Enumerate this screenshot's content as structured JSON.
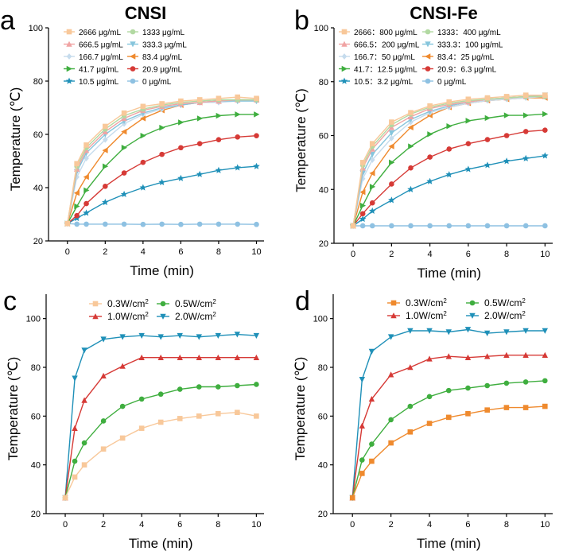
{
  "chart_data": [
    {
      "id": "a",
      "panel_label": "a",
      "type": "line",
      "title": "CNSI",
      "xlabel": "Time (min)",
      "ylabel": "Temperature (℃)",
      "xlim": [
        -1,
        10.4
      ],
      "ylim": [
        20,
        100
      ],
      "xticks": [
        0,
        2,
        4,
        6,
        8,
        10
      ],
      "yticks": [
        20,
        40,
        60,
        80,
        100
      ],
      "x": [
        0,
        0.5,
        1,
        2,
        3,
        4,
        5,
        6,
        7,
        8,
        9,
        10
      ],
      "legend": {
        "placement": "top",
        "columns": 2,
        "font": "small"
      },
      "series": [
        {
          "name": "2666 μg/mL",
          "color": "#f8c89a",
          "marker": "square",
          "values": [
            26.5,
            49,
            56,
            63,
            68,
            70.5,
            71.5,
            72.5,
            73,
            73.5,
            74,
            73.5
          ]
        },
        {
          "name": "1333 μg/mL",
          "color": "#b2d9a2",
          "marker": "circle",
          "values": [
            26.5,
            48,
            55,
            62,
            67,
            69.5,
            71,
            72,
            72.5,
            73,
            73,
            73
          ]
        },
        {
          "name": "666.5 μg/mL",
          "color": "#f0a4a4",
          "marker": "triangle-up",
          "values": [
            26.5,
            47,
            54,
            61,
            66,
            69,
            70.5,
            71.5,
            72,
            72.5,
            73,
            73
          ]
        },
        {
          "name": "333.3 μg/mL",
          "color": "#86c5dc",
          "marker": "triangle-down",
          "values": [
            26.5,
            46,
            53,
            60,
            65,
            68,
            70,
            71,
            72,
            72.5,
            72.5,
            72.5
          ]
        },
        {
          "name": "166.7 μg/mL",
          "color": "#c6dced",
          "marker": "diamond",
          "values": [
            26.5,
            44,
            51,
            58,
            64,
            67.5,
            69.5,
            71,
            72,
            72,
            72.5,
            72.5
          ]
        },
        {
          "name": "83.4 μg/mL",
          "color": "#ef8a2e",
          "marker": "triangle-left",
          "values": [
            26.5,
            38,
            44,
            54,
            61,
            66,
            69,
            71,
            72,
            72.5,
            73,
            73
          ]
        },
        {
          "name": "41.7 μg/mL",
          "color": "#3fae3f",
          "marker": "triangle-right",
          "values": [
            26.5,
            33,
            39,
            48,
            55,
            59.5,
            62.5,
            64.5,
            66,
            67,
            67.5,
            67.5
          ]
        },
        {
          "name": "20.9 μg/mL",
          "color": "#d63a36",
          "marker": "circle",
          "values": [
            26.5,
            29.5,
            34,
            40.5,
            45.5,
            49.5,
            52.5,
            55,
            56.5,
            58,
            59,
            59.5
          ]
        },
        {
          "name": "10.5 μg/mL",
          "color": "#1f90b8",
          "marker": "star",
          "values": [
            26.5,
            28.5,
            30.5,
            34.5,
            37.5,
            40,
            42,
            43.5,
            45,
            46.5,
            47.5,
            48
          ]
        },
        {
          "name": "0 μg/mL",
          "color": "#8ec1e2",
          "marker": "circle",
          "values": [
            26.5,
            26.3,
            26.3,
            26.3,
            26.3,
            26.2,
            26.3,
            26.2,
            26.3,
            26.3,
            26.3,
            26.2
          ]
        }
      ]
    },
    {
      "id": "b",
      "panel_label": "b",
      "type": "line",
      "title": "CNSI-Fe",
      "xlabel": "Time (min)",
      "ylabel": "Temperature (℃)",
      "xlim": [
        -1,
        10.4
      ],
      "ylim": [
        20,
        100
      ],
      "xticks": [
        0,
        2,
        4,
        6,
        8,
        10
      ],
      "yticks": [
        20,
        40,
        60,
        80,
        100
      ],
      "x": [
        0,
        0.5,
        1,
        2,
        3,
        4,
        5,
        6,
        7,
        8,
        9,
        10
      ],
      "legend": {
        "placement": "top",
        "columns": 2,
        "font": "small"
      },
      "series": [
        {
          "name": "2666：800 μg/mL",
          "color": "#f8c89a",
          "marker": "square",
          "values": [
            26.5,
            50,
            57,
            65,
            68.5,
            71,
            72.5,
            73.5,
            74,
            74.5,
            75,
            75
          ]
        },
        {
          "name": "1333：400 μg/mL",
          "color": "#b2d9a2",
          "marker": "circle",
          "values": [
            26.5,
            49,
            56,
            64,
            68,
            70.5,
            72,
            73,
            73.5,
            74,
            74.5,
            74.5
          ]
        },
        {
          "name": "666.5：200 μg/mL",
          "color": "#f0a4a4",
          "marker": "triangle-up",
          "values": [
            26.5,
            48,
            55,
            63,
            67,
            70,
            71.5,
            72.5,
            73.5,
            74,
            74.5,
            74.5
          ]
        },
        {
          "name": "333.3：100 μg/mL",
          "color": "#86c5dc",
          "marker": "triangle-down",
          "values": [
            26.5,
            46,
            53,
            61,
            66,
            69,
            71,
            72.5,
            73.5,
            74,
            74.5,
            75
          ]
        },
        {
          "name": "166.7：50 μg/mL",
          "color": "#c6dced",
          "marker": "diamond",
          "values": [
            26.5,
            44,
            51,
            59,
            65,
            68.5,
            70.5,
            72,
            73,
            73.5,
            74,
            74.5
          ]
        },
        {
          "name": "83.4：25 μg/mL",
          "color": "#ef8a2e",
          "marker": "triangle-left",
          "values": [
            26.5,
            39,
            46,
            56,
            63,
            67.5,
            70.5,
            72,
            73,
            73.5,
            74,
            74
          ]
        },
        {
          "name": "41.7：12.5 μg/mL",
          "color": "#3fae3f",
          "marker": "triangle-right",
          "values": [
            26.5,
            34,
            41,
            50,
            56,
            60.5,
            63.5,
            65.5,
            66.5,
            67.5,
            67.5,
            68
          ]
        },
        {
          "name": "20.9：6.3 μg/mL",
          "color": "#d63a36",
          "marker": "circle",
          "values": [
            26.5,
            31,
            35,
            42,
            48,
            52,
            55,
            57,
            58.5,
            60,
            61.5,
            62
          ]
        },
        {
          "name": "10.5：3.2 μg/mL",
          "color": "#1f90b8",
          "marker": "star",
          "values": [
            26.5,
            29,
            32,
            36,
            40,
            43,
            45.5,
            47.5,
            49,
            50.5,
            51.5,
            52.5
          ]
        },
        {
          "name": "0 μg/mL",
          "color": "#8ec1e2",
          "marker": "circle",
          "values": [
            26.5,
            26.5,
            26.5,
            26.5,
            26.5,
            26.5,
            26.5,
            26.5,
            26.5,
            26.5,
            26.5,
            26.5
          ]
        }
      ]
    },
    {
      "id": "c",
      "panel_label": "c",
      "type": "line",
      "title": "",
      "xlabel": "Time (min)",
      "ylabel": "Temperature (℃)",
      "xlim": [
        -1,
        10.4
      ],
      "ylim": [
        20,
        110
      ],
      "xticks": [
        0,
        2,
        4,
        6,
        8,
        10
      ],
      "yticks": [
        20,
        40,
        60,
        80,
        100
      ],
      "x": [
        0,
        0.5,
        1,
        2,
        3,
        4,
        5,
        6,
        7,
        8,
        9,
        10
      ],
      "legend": {
        "placement": "top",
        "columns": 2,
        "font": "large"
      },
      "series": [
        {
          "name": "0.3W/cm²",
          "color": "#f8c89a",
          "marker": "square",
          "values": [
            26.5,
            35,
            40,
            46.5,
            51,
            55,
            57.5,
            59,
            60,
            61,
            61.5,
            60
          ]
        },
        {
          "name": "0.5W/cm²",
          "color": "#3fae3f",
          "marker": "circle",
          "values": [
            26.5,
            41.5,
            49,
            58,
            64,
            67,
            69,
            71,
            72,
            72,
            72.5,
            73
          ]
        },
        {
          "name": "1.0W/cm²",
          "color": "#d63a36",
          "marker": "triangle-up",
          "values": [
            26.5,
            55,
            66.5,
            76.5,
            80.5,
            84,
            84,
            84,
            84,
            84,
            84,
            84
          ]
        },
        {
          "name": "2.0W/cm²",
          "color": "#1f90b8",
          "marker": "triangle-down",
          "values": [
            26.5,
            75.5,
            87,
            91.5,
            92.5,
            93,
            92.5,
            93,
            92.5,
            93,
            93.5,
            93
          ]
        }
      ]
    },
    {
      "id": "d",
      "panel_label": "d",
      "type": "line",
      "title": "",
      "xlabel": "Time (min)",
      "ylabel": "Temperature (℃)",
      "xlim": [
        -1,
        10.4
      ],
      "ylim": [
        20,
        110
      ],
      "xticks": [
        0,
        2,
        4,
        6,
        8,
        10
      ],
      "yticks": [
        20,
        40,
        60,
        80,
        100
      ],
      "x": [
        0,
        0.5,
        1,
        2,
        3,
        4,
        5,
        6,
        7,
        8,
        9,
        10
      ],
      "legend": {
        "placement": "top",
        "columns": 2,
        "font": "large"
      },
      "series": [
        {
          "name": "0.3W/cm²",
          "color": "#ef8a2e",
          "marker": "square",
          "values": [
            26.5,
            36.5,
            41.5,
            49,
            53.5,
            57,
            59.5,
            61,
            62.5,
            63.5,
            63.5,
            64
          ]
        },
        {
          "name": "0.5W/cm²",
          "color": "#3fae3f",
          "marker": "circle",
          "values": [
            26.5,
            42,
            48.5,
            58.5,
            64,
            68,
            70.5,
            71.5,
            72.5,
            73.5,
            74,
            74.5
          ]
        },
        {
          "name": "1.0W/cm²",
          "color": "#d63a36",
          "marker": "triangle-up",
          "values": [
            26.5,
            56,
            67,
            77,
            80,
            83.5,
            84.5,
            84,
            84.5,
            85,
            85,
            85
          ]
        },
        {
          "name": "2.0W/cm²",
          "color": "#1f90b8",
          "marker": "triangle-down",
          "values": [
            26.5,
            75,
            86.5,
            92.5,
            95,
            95,
            94.5,
            95.5,
            94,
            94.5,
            95,
            95
          ]
        }
      ]
    }
  ]
}
